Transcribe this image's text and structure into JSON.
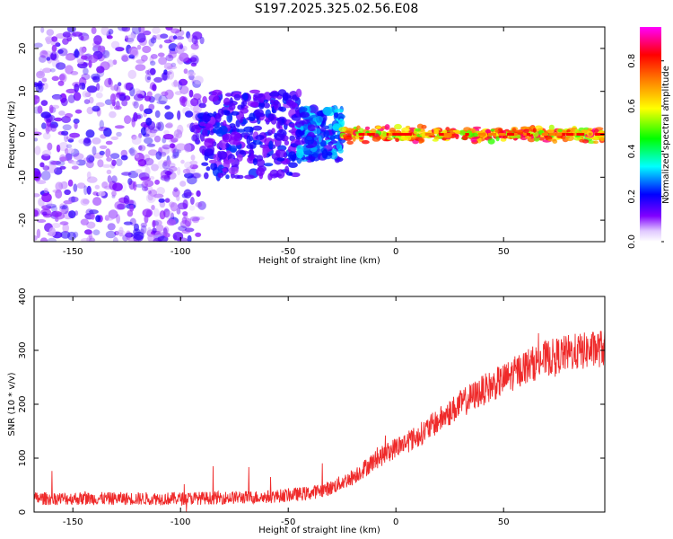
{
  "title": "S197.2025.325.02.56.E08",
  "chart_data": [
    {
      "type": "heatmap",
      "title": "",
      "xlabel": "Height of straight line (km)",
      "ylabel": "Frequency (Hz)",
      "xlim": [
        -168,
        97
      ],
      "ylim": [
        -25,
        25
      ],
      "xticks": [
        -150,
        -100,
        -50,
        0,
        50
      ],
      "yticks": [
        -20,
        -10,
        0,
        10,
        20
      ],
      "colorbar": {
        "label": "Normalized spectral amplitude",
        "range": [
          0.0,
          0.95
        ],
        "ticks": [
          0.0,
          0.2,
          0.4,
          0.6,
          0.8
        ],
        "tick_labels": [
          "0.0",
          "0.2",
          "0.4",
          "0.6",
          "0.8"
        ],
        "colormap": [
          "#ffffff",
          "#8000ff",
          "#0000ff",
          "#00ffff",
          "#00ff00",
          "#ffff00",
          "#ff8000",
          "#ff0000",
          "#ff00ff"
        ]
      },
      "regions": [
        {
          "x_range": [
            -168,
            -90
          ],
          "f_spread": 25,
          "amplitude": [
            0.05,
            0.2
          ],
          "description": "diffuse noise"
        },
        {
          "x_range": [
            -90,
            -45
          ],
          "f_spread": 10,
          "amplitude": [
            0.1,
            0.25
          ]
        },
        {
          "x_range": [
            -45,
            -25
          ],
          "f_spread": 6,
          "amplitude": [
            0.15,
            0.35
          ]
        },
        {
          "x_range": [
            -25,
            97
          ],
          "f_spread": 2,
          "amplitude": [
            0.5,
            0.95
          ]
        }
      ]
    },
    {
      "type": "line",
      "title": "",
      "xlabel": "Height of straight line (km)",
      "ylabel": "SNR (10 * v/v)",
      "xlim": [
        -168,
        97
      ],
      "ylim": [
        0,
        400
      ],
      "xticks": [
        -150,
        -100,
        -50,
        0,
        50
      ],
      "yticks": [
        0,
        100,
        200,
        300,
        400
      ],
      "color": "#ef2a2a",
      "series": [
        {
          "name": "SNR",
          "trend_x": [
            -168,
            -100,
            -60,
            -40,
            -30,
            -20,
            -10,
            0,
            10,
            20,
            30,
            40,
            50,
            60,
            70,
            80,
            90,
            97
          ],
          "trend_y": [
            25,
            25,
            28,
            35,
            45,
            65,
            95,
            120,
            140,
            170,
            200,
            225,
            245,
            270,
            285,
            295,
            300,
            305
          ],
          "noise_amplitude": 25
        }
      ]
    }
  ]
}
